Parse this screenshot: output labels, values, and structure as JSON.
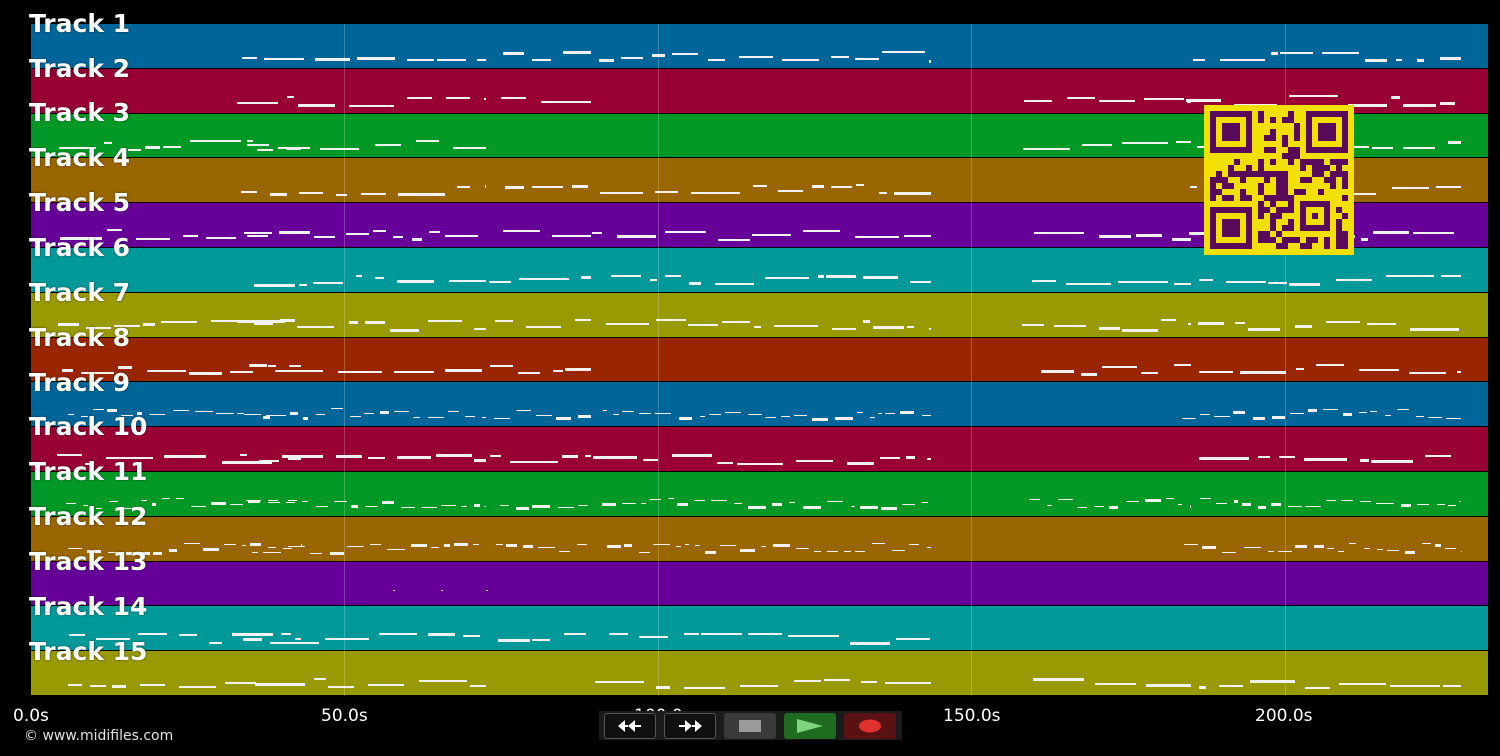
{
  "tracks": [
    {
      "label": "Track 1",
      "color": "#006699"
    },
    {
      "label": "Track 2",
      "color": "#990033"
    },
    {
      "label": "Track 3",
      "color": "#009926"
    },
    {
      "label": "Track 4",
      "color": "#996600"
    },
    {
      "label": "Track 5",
      "color": "#660099"
    },
    {
      "label": "Track 6",
      "color": "#009999"
    },
    {
      "label": "Track 7",
      "color": "#999900"
    },
    {
      "label": "Track 8",
      "color": "#992600"
    },
    {
      "label": "Track 9",
      "color": "#006699"
    },
    {
      "label": "Track 10",
      "color": "#990033"
    },
    {
      "label": "Track 11",
      "color": "#009926"
    },
    {
      "label": "Track 12",
      "color": "#996600"
    },
    {
      "label": "Track 13",
      "color": "#660099"
    },
    {
      "label": "Track 14",
      "color": "#009999"
    },
    {
      "label": "Track 15",
      "color": "#999900"
    }
  ],
  "timeline": {
    "ticks": [
      "0.0s",
      "50.0s",
      "100.0s",
      "150.0s",
      "200.0s"
    ]
  },
  "footer": {
    "copyright": "© www.midifiles.com"
  },
  "transport": {
    "rewind_icon": "rewind-icon",
    "forward_icon": "fast-forward-icon",
    "stop_icon": "stop-icon",
    "play_icon": "play-icon",
    "record_icon": "record-icon"
  },
  "qr_color": "#5a0a5a",
  "qr_background": "#f2e000"
}
